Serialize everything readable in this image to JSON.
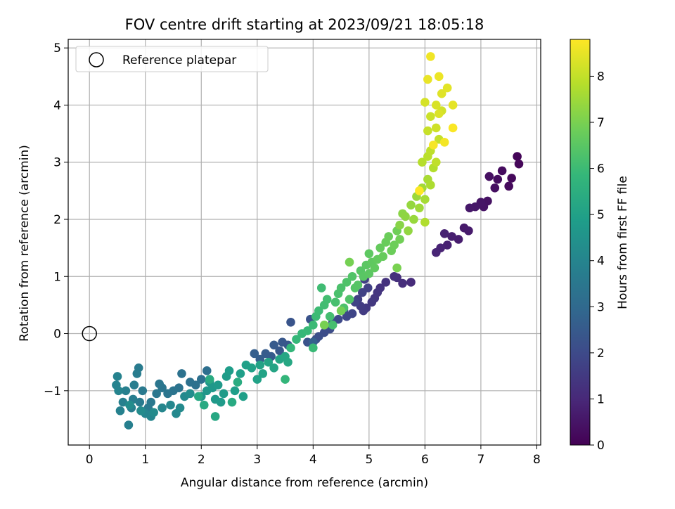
{
  "chart_data": {
    "type": "scatter",
    "title": "FOV centre drift starting at 2023/09/21 18:05:18",
    "xlabel": "Angular distance from reference (arcmin)",
    "ylabel": "Rotation from reference (arcmin)",
    "xlim": [
      -0.38,
      8.07
    ],
    "ylim": [
      -1.95,
      5.15
    ],
    "xticks": [
      "0",
      "1",
      "2",
      "3",
      "4",
      "5",
      "6",
      "7",
      "8"
    ],
    "yticks": [
      "−1",
      "0",
      "1",
      "2",
      "3",
      "4",
      "5"
    ],
    "grid": true,
    "legend": {
      "placement": "top-left",
      "entries": [
        "Reference platepar"
      ]
    },
    "reference_point": {
      "label": "Reference platepar",
      "x": 0,
      "y": 0
    },
    "colorbar": {
      "label": "Hours from first FF file",
      "range": [
        0,
        8.8
      ],
      "ticks": [
        "0",
        "1",
        "2",
        "3",
        "4",
        "5",
        "6",
        "7",
        "8"
      ],
      "colormap": "viridis"
    },
    "colormap_stops": [
      "#440154",
      "#482878",
      "#3e4989",
      "#31688e",
      "#26828e",
      "#1f9e89",
      "#35b779",
      "#6ece58",
      "#b5de2b",
      "#fde725"
    ],
    "series": [
      {
        "points": [
          [
            7.65,
            3.1
          ],
          [
            7.68,
            2.97
          ],
          [
            7.55,
            2.72
          ],
          [
            7.5,
            2.58
          ],
          [
            7.38,
            2.85
          ],
          [
            7.3,
            2.7
          ],
          [
            7.25,
            2.55
          ],
          [
            7.15,
            2.75
          ],
          [
            7.12,
            2.32
          ],
          [
            7.05,
            2.22
          ],
          [
            7.0,
            2.3
          ],
          [
            6.9,
            2.22
          ],
          [
            6.8,
            2.2
          ],
          [
            6.7,
            1.85
          ],
          [
            6.78,
            1.8
          ],
          [
            6.6,
            1.65
          ],
          [
            6.48,
            1.7
          ],
          [
            6.4,
            1.55
          ],
          [
            6.35,
            1.75
          ],
          [
            6.28,
            1.5
          ],
          [
            6.2,
            1.42
          ]
        ],
        "hours_range": [
          0.1,
          0.9
        ]
      },
      {
        "points": [
          [
            5.75,
            0.9
          ],
          [
            5.6,
            0.88
          ],
          [
            5.5,
            0.98
          ],
          [
            5.45,
            1.0
          ],
          [
            5.3,
            0.9
          ],
          [
            5.2,
            0.8
          ],
          [
            5.15,
            0.72
          ],
          [
            5.1,
            0.62
          ],
          [
            5.05,
            0.55
          ],
          [
            4.95,
            0.45
          ],
          [
            4.9,
            0.4
          ],
          [
            4.85,
            0.48
          ],
          [
            4.8,
            0.6
          ],
          [
            4.92,
            0.95
          ],
          [
            4.98,
            0.8
          ],
          [
            4.88,
            0.72
          ],
          [
            4.75,
            0.55
          ],
          [
            4.7,
            0.35
          ],
          [
            4.6,
            0.3
          ],
          [
            4.55,
            0.4
          ],
          [
            4.45,
            0.25
          ],
          [
            4.35,
            0.2
          ],
          [
            4.3,
            0.08
          ],
          [
            4.2,
            0.02
          ],
          [
            4.1,
            -0.05
          ],
          [
            4.05,
            -0.1
          ],
          [
            3.95,
            0.25
          ],
          [
            3.9,
            -0.15
          ],
          [
            3.6,
            0.2
          ],
          [
            3.55,
            -0.2
          ],
          [
            3.45,
            -0.15
          ],
          [
            3.4,
            -0.3
          ],
          [
            3.3,
            -0.2
          ],
          [
            3.25,
            -0.4
          ],
          [
            3.15,
            -0.35
          ],
          [
            3.05,
            -0.45
          ],
          [
            2.95,
            -0.35
          ],
          [
            4.0,
            -0.15
          ]
        ],
        "hours_range": [
          1.1,
          2.7
        ]
      },
      {
        "points": [
          [
            2.1,
            -0.65
          ],
          [
            2.0,
            -0.8
          ],
          [
            1.9,
            -0.9
          ],
          [
            1.8,
            -0.85
          ],
          [
            1.65,
            -0.7
          ],
          [
            1.6,
            -0.95
          ],
          [
            1.5,
            -1.0
          ],
          [
            1.4,
            -1.05
          ],
          [
            1.3,
            -0.95
          ],
          [
            1.25,
            -0.88
          ],
          [
            1.2,
            -1.05
          ],
          [
            1.1,
            -1.2
          ],
          [
            1.05,
            -1.3
          ],
          [
            0.95,
            -1.0
          ],
          [
            0.9,
            -1.2
          ],
          [
            0.88,
            -0.6
          ],
          [
            0.85,
            -0.7
          ],
          [
            0.8,
            -0.9
          ],
          [
            0.78,
            -1.15
          ],
          [
            0.75,
            -1.3
          ],
          [
            0.7,
            -1.6
          ],
          [
            0.65,
            -1.0
          ],
          [
            0.6,
            -1.2
          ],
          [
            0.55,
            -1.35
          ],
          [
            0.5,
            -0.75
          ],
          [
            0.48,
            -0.9
          ],
          [
            0.52,
            -1.0
          ],
          [
            1.0,
            -1.4
          ],
          [
            1.1,
            -1.45
          ],
          [
            1.3,
            -1.3
          ],
          [
            1.45,
            -1.25
          ],
          [
            1.55,
            -1.4
          ],
          [
            1.7,
            -1.1
          ],
          [
            1.62,
            -1.3
          ],
          [
            0.92,
            -1.35
          ],
          [
            1.15,
            -1.38
          ],
          [
            0.72,
            -1.25
          ],
          [
            1.8,
            -1.05
          ]
        ],
        "hours_range": [
          3.2,
          4.3
        ]
      },
      {
        "points": [
          [
            2.0,
            -1.1
          ],
          [
            2.1,
            -1.0
          ],
          [
            2.15,
            -0.85
          ],
          [
            2.2,
            -0.95
          ],
          [
            2.25,
            -1.15
          ],
          [
            2.3,
            -0.9
          ],
          [
            2.35,
            -1.2
          ],
          [
            2.4,
            -1.05
          ],
          [
            2.45,
            -0.75
          ],
          [
            2.5,
            -0.65
          ],
          [
            2.6,
            -1.0
          ],
          [
            2.7,
            -0.7
          ],
          [
            2.75,
            -1.1
          ],
          [
            2.8,
            -0.55
          ],
          [
            2.9,
            -0.6
          ],
          [
            3.0,
            -0.8
          ],
          [
            3.05,
            -0.55
          ],
          [
            3.1,
            -0.7
          ],
          [
            3.2,
            -0.5
          ],
          [
            3.3,
            -0.6
          ],
          [
            3.4,
            -0.45
          ],
          [
            3.5,
            -0.4
          ],
          [
            3.55,
            -0.5
          ],
          [
            2.25,
            -1.45
          ],
          [
            1.95,
            -1.1
          ],
          [
            2.05,
            -1.25
          ],
          [
            2.55,
            -1.2
          ],
          [
            2.15,
            -0.8
          ],
          [
            2.65,
            -0.85
          ]
        ],
        "hours_range": [
          4.6,
          5.4
        ]
      },
      {
        "points": [
          [
            3.5,
            -0.8
          ],
          [
            3.6,
            -0.25
          ],
          [
            3.7,
            -0.1
          ],
          [
            3.8,
            0.0
          ],
          [
            3.9,
            0.05
          ],
          [
            4.0,
            -0.25
          ],
          [
            4.0,
            0.15
          ],
          [
            4.05,
            0.3
          ],
          [
            4.1,
            0.4
          ],
          [
            4.15,
            0.8
          ],
          [
            4.2,
            0.5
          ],
          [
            4.25,
            0.6
          ],
          [
            4.3,
            0.3
          ],
          [
            4.35,
            0.15
          ],
          [
            4.4,
            0.55
          ],
          [
            4.45,
            0.7
          ],
          [
            4.5,
            0.8
          ],
          [
            4.55,
            0.45
          ],
          [
            4.6,
            0.9
          ],
          [
            4.65,
            0.6
          ],
          [
            4.7,
            1.0
          ],
          [
            4.75,
            0.8
          ],
          [
            4.8,
            0.85
          ],
          [
            4.85,
            1.1
          ],
          [
            4.9,
            1.0
          ],
          [
            4.95,
            1.2
          ],
          [
            5.0,
            1.05
          ],
          [
            5.0,
            1.4
          ],
          [
            5.05,
            1.25
          ],
          [
            5.1,
            1.15
          ],
          [
            5.15,
            1.3
          ],
          [
            5.2,
            1.5
          ],
          [
            5.25,
            1.35
          ],
          [
            5.3,
            1.6
          ],
          [
            5.35,
            1.7
          ],
          [
            5.4,
            1.45
          ],
          [
            5.45,
            1.55
          ],
          [
            5.5,
            1.8
          ],
          [
            5.55,
            1.65
          ],
          [
            4.5,
            0.4
          ],
          [
            4.65,
            1.25
          ],
          [
            4.2,
            0.15
          ],
          [
            5.5,
            1.15
          ]
        ],
        "hours_range": [
          5.8,
          7.0
        ]
      },
      {
        "points": [
          [
            5.55,
            1.9
          ],
          [
            5.6,
            2.1
          ],
          [
            5.65,
            2.05
          ],
          [
            5.7,
            1.8
          ],
          [
            5.75,
            2.25
          ],
          [
            5.8,
            2.0
          ],
          [
            5.85,
            2.4
          ],
          [
            5.9,
            2.2
          ],
          [
            5.95,
            2.55
          ],
          [
            6.0,
            2.35
          ],
          [
            6.05,
            2.7
          ],
          [
            6.1,
            2.6
          ],
          [
            6.0,
            1.95
          ],
          [
            6.15,
            2.9
          ],
          [
            5.95,
            3.0
          ],
          [
            6.05,
            3.1
          ],
          [
            6.1,
            3.2
          ],
          [
            6.2,
            3.0
          ],
          [
            6.25,
            3.4
          ],
          [
            6.05,
            3.55
          ],
          [
            6.1,
            3.8
          ],
          [
            6.2,
            3.6
          ],
          [
            6.3,
            3.9
          ],
          [
            6.0,
            4.05
          ],
          [
            6.2,
            4.0
          ],
          [
            6.25,
            3.85
          ],
          [
            6.3,
            4.2
          ],
          [
            6.4,
            4.3
          ],
          [
            6.5,
            4.0
          ],
          [
            6.05,
            4.45
          ],
          [
            6.25,
            4.5
          ],
          [
            6.1,
            4.85
          ],
          [
            6.35,
            3.35
          ],
          [
            6.15,
            3.3
          ],
          [
            6.5,
            3.6
          ],
          [
            5.9,
            2.5
          ]
        ],
        "hours_range": [
          7.2,
          8.8
        ]
      }
    ]
  }
}
